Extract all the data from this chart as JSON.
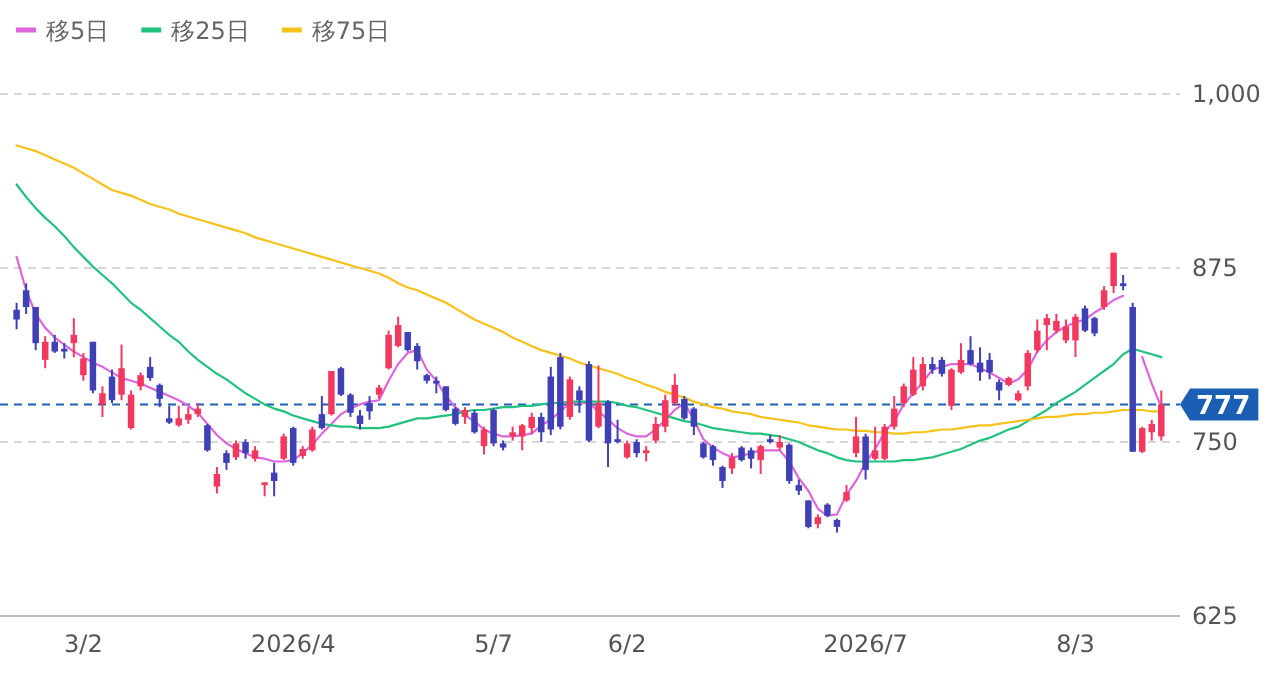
{
  "chart_data": {
    "type": "candlestick",
    "categories": [
      null,
      null,
      null,
      null,
      null,
      null,
      null,
      "3/2",
      null,
      null,
      null,
      null,
      null,
      null,
      null,
      null,
      null,
      null,
      null,
      null,
      null,
      null,
      null,
      null,
      null,
      null,
      null,
      null,
      null,
      "2026/4",
      null,
      null,
      null,
      null,
      null,
      null,
      null,
      null,
      null,
      null,
      null,
      null,
      null,
      null,
      null,
      null,
      null,
      null,
      null,
      null,
      "5/7",
      null,
      null,
      null,
      null,
      null,
      null,
      null,
      null,
      null,
      null,
      null,
      null,
      null,
      "6/2",
      null,
      null,
      null,
      null,
      null,
      null,
      null,
      null,
      null,
      null,
      null,
      null,
      null,
      null,
      null,
      null,
      null,
      null,
      null,
      null,
      null,
      null,
      null,
      null,
      "2026/7",
      null,
      null,
      null,
      null,
      null,
      null,
      null,
      null,
      null,
      null,
      null,
      null,
      null,
      null,
      null,
      null,
      null,
      null,
      null,
      null,
      null,
      "8/3",
      null,
      null,
      null,
      null,
      null,
      null,
      null,
      null,
      null
    ],
    "ohlc": [
      [
        845,
        850,
        831,
        838
      ],
      [
        859,
        864,
        842,
        847
      ],
      [
        847,
        847,
        816,
        821
      ],
      [
        809,
        826,
        803,
        822
      ],
      [
        822,
        827,
        814,
        815
      ],
      [
        817,
        821,
        810,
        815
      ],
      [
        821,
        839,
        811,
        827
      ],
      [
        798,
        814,
        794,
        810
      ],
      [
        822,
        822,
        785,
        787
      ],
      [
        777,
        790,
        768,
        785
      ],
      [
        797,
        802,
        778,
        780
      ],
      [
        784,
        820,
        780,
        803
      ],
      [
        760,
        787,
        759,
        784
      ],
      [
        790,
        800,
        787,
        798
      ],
      [
        804,
        811,
        794,
        796
      ],
      [
        791,
        792,
        775,
        781
      ],
      [
        767,
        776,
        763,
        764
      ],
      [
        762,
        776,
        761,
        767
      ],
      [
        766,
        775,
        763,
        770
      ],
      [
        770,
        778,
        768,
        774
      ],
      [
        762,
        763,
        743,
        744
      ],
      [
        718,
        732,
        713,
        727
      ],
      [
        742,
        744,
        730,
        735
      ],
      [
        739,
        751,
        737,
        749
      ],
      [
        750,
        752,
        738,
        742
      ],
      [
        738,
        747,
        736,
        744
      ],
      [
        719,
        721,
        711,
        721
      ],
      [
        728,
        735,
        711,
        722
      ],
      [
        738,
        756,
        737,
        754
      ],
      [
        760,
        761,
        733,
        735
      ],
      [
        740,
        747,
        738,
        745
      ],
      [
        744,
        761,
        743,
        759
      ],
      [
        770,
        783,
        759,
        760
      ],
      [
        770,
        801,
        769,
        801
      ],
      [
        803,
        804,
        783,
        784
      ],
      [
        784,
        785,
        768,
        771
      ],
      [
        769,
        773,
        759,
        763
      ],
      [
        778,
        783,
        766,
        772
      ],
      [
        784,
        791,
        781,
        789
      ],
      [
        803,
        830,
        802,
        827
      ],
      [
        819,
        840,
        818,
        834
      ],
      [
        829,
        829,
        815,
        816
      ],
      [
        819,
        821,
        802,
        808
      ],
      [
        798,
        799,
        792,
        794
      ],
      [
        794,
        797,
        785,
        792
      ],
      [
        790,
        790,
        772,
        773
      ],
      [
        774,
        775,
        762,
        763
      ],
      [
        768,
        775,
        763,
        773
      ],
      [
        771,
        773,
        756,
        757
      ],
      [
        747,
        761,
        741,
        759
      ],
      [
        773,
        774,
        747,
        749
      ],
      [
        749,
        751,
        744,
        746
      ],
      [
        754,
        761,
        751,
        757
      ],
      [
        754,
        763,
        744,
        762
      ],
      [
        760,
        771,
        756,
        768
      ],
      [
        768,
        771,
        750,
        757
      ],
      [
        797,
        804,
        755,
        759
      ],
      [
        811,
        814,
        759,
        761
      ],
      [
        768,
        797,
        766,
        795
      ],
      [
        787,
        790,
        771,
        780
      ],
      [
        806,
        808,
        750,
        751
      ],
      [
        761,
        805,
        760,
        778
      ],
      [
        779,
        780,
        732,
        749
      ],
      [
        752,
        766,
        749,
        750
      ],
      [
        739,
        751,
        738,
        749
      ],
      [
        750,
        752,
        739,
        742
      ],
      [
        742,
        747,
        736,
        744
      ],
      [
        751,
        768,
        749,
        763
      ],
      [
        761,
        784,
        757,
        780
      ],
      [
        778,
        799,
        776,
        791
      ],
      [
        781,
        783,
        766,
        767
      ],
      [
        774,
        775,
        755,
        761
      ],
      [
        749,
        750,
        738,
        739
      ],
      [
        747,
        748,
        733,
        737
      ],
      [
        732,
        733,
        717,
        722
      ],
      [
        731,
        742,
        727,
        739
      ],
      [
        746,
        747,
        736,
        737
      ],
      [
        744,
        746,
        731,
        738
      ],
      [
        737,
        748,
        727,
        747
      ],
      [
        752,
        755,
        749,
        750
      ],
      [
        746,
        755,
        744,
        750
      ],
      [
        748,
        749,
        720,
        722
      ],
      [
        719,
        723,
        712,
        715
      ],
      [
        708,
        708,
        688,
        689
      ],
      [
        691,
        698,
        688,
        696
      ],
      [
        705,
        706,
        696,
        697
      ],
      [
        694,
        695,
        685,
        689
      ],
      [
        708,
        719,
        707,
        714
      ],
      [
        742,
        768,
        739,
        754
      ],
      [
        754,
        756,
        723,
        730
      ],
      [
        738,
        761,
        737,
        744
      ],
      [
        738,
        763,
        737,
        761
      ],
      [
        761,
        783,
        759,
        774
      ],
      [
        778,
        792,
        775,
        790
      ],
      [
        784,
        811,
        783,
        802
      ],
      [
        790,
        811,
        787,
        806
      ],
      [
        806,
        811,
        799,
        802
      ],
      [
        809,
        811,
        797,
        799
      ],
      [
        776,
        803,
        773,
        802
      ],
      [
        800,
        821,
        799,
        809
      ],
      [
        816,
        826,
        805,
        806
      ],
      [
        807,
        818,
        794,
        800
      ],
      [
        809,
        814,
        795,
        800
      ],
      [
        793,
        795,
        780,
        787
      ],
      [
        791,
        797,
        790,
        796
      ],
      [
        780,
        787,
        779,
        785
      ],
      [
        790,
        816,
        787,
        814
      ],
      [
        816,
        838,
        814,
        830
      ],
      [
        834,
        842,
        816,
        839
      ],
      [
        830,
        842,
        828,
        837
      ],
      [
        823,
        838,
        821,
        833
      ],
      [
        823,
        842,
        811,
        840
      ],
      [
        846,
        848,
        829,
        830
      ],
      [
        839,
        840,
        826,
        828
      ],
      [
        847,
        862,
        845,
        859
      ],
      [
        862,
        886,
        857,
        886
      ],
      [
        864,
        870,
        859,
        862
      ],
      [
        847,
        850,
        743,
        743
      ],
      [
        743,
        761,
        742,
        760
      ],
      [
        757,
        766,
        751,
        763
      ],
      [
        754,
        787,
        751,
        777
      ]
    ],
    "colors": [
      "#3f3fb6",
      "#3f3fb6",
      "#3f3fb6",
      "#f2385e",
      "#3f3fb6",
      "#3f3fb6",
      "#f2385e",
      "#f2385e",
      "#3f3fb6",
      "#f2385e",
      "#3f3fb6",
      "#f2385e",
      "#f2385e",
      "#f2385e",
      "#3f3fb6",
      "#3f3fb6",
      "#3f3fb6",
      "#f2385e",
      "#f2385e",
      "#f2385e",
      "#3f3fb6",
      "#f2385e",
      "#3f3fb6",
      "#f2385e",
      "#3f3fb6",
      "#f2385e",
      "#f2385e",
      "#3f3fb6",
      "#f2385e",
      "#3f3fb6",
      "#f2385e",
      "#f2385e",
      "#3f3fb6",
      "#f2385e",
      "#3f3fb6",
      "#3f3fb6",
      "#3f3fb6",
      "#3f3fb6",
      "#f2385e",
      "#f2385e",
      "#f2385e",
      "#3f3fb6",
      "#3f3fb6",
      "#3f3fb6",
      "#3f3fb6",
      "#3f3fb6",
      "#3f3fb6",
      "#f2385e",
      "#3f3fb6",
      "#f2385e",
      "#3f3fb6",
      "#3f3fb6",
      "#f2385e",
      "#f2385e",
      "#f2385e",
      "#3f3fb6",
      "#3f3fb6",
      "#3f3fb6",
      "#f2385e",
      "#3f3fb6",
      "#3f3fb6",
      "#f2385e",
      "#3f3fb6",
      "#3f3fb6",
      "#f2385e",
      "#3f3fb6",
      "#f2385e",
      "#f2385e",
      "#f2385e",
      "#f2385e",
      "#3f3fb6",
      "#3f3fb6",
      "#3f3fb6",
      "#3f3fb6",
      "#3f3fb6",
      "#f2385e",
      "#3f3fb6",
      "#3f3fb6",
      "#f2385e",
      "#3f3fb6",
      "#f2385e",
      "#3f3fb6",
      "#3f3fb6",
      "#3f3fb6",
      "#f2385e",
      "#3f3fb6",
      "#3f3fb6",
      "#f2385e",
      "#f2385e",
      "#3f3fb6",
      "#f2385e",
      "#f2385e",
      "#f2385e",
      "#f2385e",
      "#f2385e",
      "#f2385e",
      "#3f3fb6",
      "#3f3fb6",
      "#f2385e",
      "#f2385e",
      "#3f3fb6",
      "#3f3fb6",
      "#3f3fb6",
      "#3f3fb6",
      "#f2385e",
      "#f2385e",
      "#f2385e",
      "#f2385e",
      "#f2385e",
      "#f2385e",
      "#f2385e",
      "#f2385e",
      "#3f3fb6",
      "#3f3fb6",
      "#f2385e",
      "#f2385e",
      "#3f3fb6",
      "#3f3fb6",
      "#f2385e",
      "#f2385e",
      "#f2385e"
    ],
    "series": [
      {
        "name": "移5日",
        "type": "line",
        "color": "#dd66dd",
        "values": [
          883,
          859,
          842,
          832,
          825,
          820,
          815,
          811,
          807,
          804,
          800,
          796,
          794,
          792,
          789,
          786,
          783,
          780,
          776,
          771,
          763,
          755,
          749,
          745,
          742,
          739,
          738,
          736,
          736,
          737,
          742,
          748,
          756,
          763,
          770,
          774,
          777,
          779,
          780,
          794,
          806,
          814,
          816,
          802,
          794,
          783,
          775,
          769,
          765,
          759,
          756,
          754,
          754,
          755,
          756,
          762,
          766,
          772,
          778,
          778,
          778,
          772,
          766,
          760,
          756,
          754,
          754,
          759,
          766,
          773,
          778,
          766,
          752,
          746,
          742,
          739,
          740,
          742,
          744,
          744,
          744,
          736,
          724,
          715,
          702,
          697,
          698,
          712,
          722,
          735,
          745,
          757,
          765,
          777,
          785,
          793,
          802,
          804,
          806,
          806,
          806,
          803,
          800,
          796,
          792,
          795,
          802,
          815,
          823,
          829,
          833,
          836,
          838,
          843,
          847,
          852,
          855,
          null,
          811,
          792,
          775
        ]
      },
      {
        "name": "移25日",
        "type": "line",
        "color": "#22c27e",
        "values": [
          935,
          926,
          918,
          911,
          905,
          898,
          890,
          883,
          876,
          870,
          864,
          857,
          850,
          845,
          839,
          833,
          827,
          822,
          815,
          809,
          804,
          799,
          795,
          790,
          785,
          781,
          777,
          774,
          772,
          769,
          767,
          765,
          763,
          762,
          761,
          761,
          760,
          760,
          760,
          761,
          763,
          765,
          767,
          767,
          768,
          769,
          770,
          772,
          773,
          773,
          774,
          775,
          775,
          776,
          776,
          777,
          778,
          778,
          779,
          779,
          779,
          779,
          779,
          778,
          776,
          775,
          773,
          771,
          769,
          767,
          765,
          764,
          762,
          760,
          759,
          758,
          757,
          756,
          756,
          755,
          754,
          752,
          750,
          747,
          744,
          742,
          739,
          737,
          736,
          736,
          736,
          736,
          736,
          737,
          737,
          738,
          739,
          741,
          743,
          745,
          748,
          751,
          753,
          756,
          759,
          761,
          765,
          769,
          773,
          778,
          782,
          786,
          791,
          796,
          801,
          806,
          813,
          817,
          815,
          813,
          811
        ]
      },
      {
        "name": "移75日",
        "type": "line",
        "color": "#f5c21b",
        "values": [
          963,
          961,
          959,
          956,
          953,
          950,
          947,
          943,
          939,
          935,
          931,
          929,
          927,
          924,
          921,
          919,
          917,
          914,
          912,
          910,
          908,
          906,
          904,
          902,
          900,
          897,
          895,
          893,
          891,
          889,
          887,
          885,
          883,
          881,
          879,
          877,
          875,
          873,
          871,
          868,
          864,
          861,
          859,
          856,
          853,
          850,
          846,
          842,
          838,
          835,
          832,
          829,
          825,
          822,
          819,
          816,
          814,
          812,
          810,
          807,
          805,
          803,
          801,
          799,
          796,
          794,
          791,
          789,
          786,
          784,
          782,
          779,
          777,
          775,
          774,
          772,
          771,
          770,
          768,
          767,
          766,
          765,
          764,
          762,
          761,
          760,
          759,
          759,
          758,
          758,
          757,
          757,
          756,
          756,
          757,
          757,
          758,
          759,
          759,
          760,
          761,
          762,
          762,
          763,
          764,
          765,
          766,
          767,
          768,
          768,
          769,
          770,
          770,
          771,
          771,
          772,
          773,
          773,
          773,
          772,
          772
        ]
      }
    ],
    "ylim": [
      625,
      1000
    ],
    "yticks": [
      625,
      750,
      875,
      {
        "value": 1000,
        "label": "1,000"
      }
    ],
    "grid": "y",
    "legend": "top left",
    "ref_lines": [
      {
        "axis": "y",
        "value": 777,
        "label": "777",
        "color": "#1a5fb4",
        "line_style": "dashed"
      }
    ]
  }
}
